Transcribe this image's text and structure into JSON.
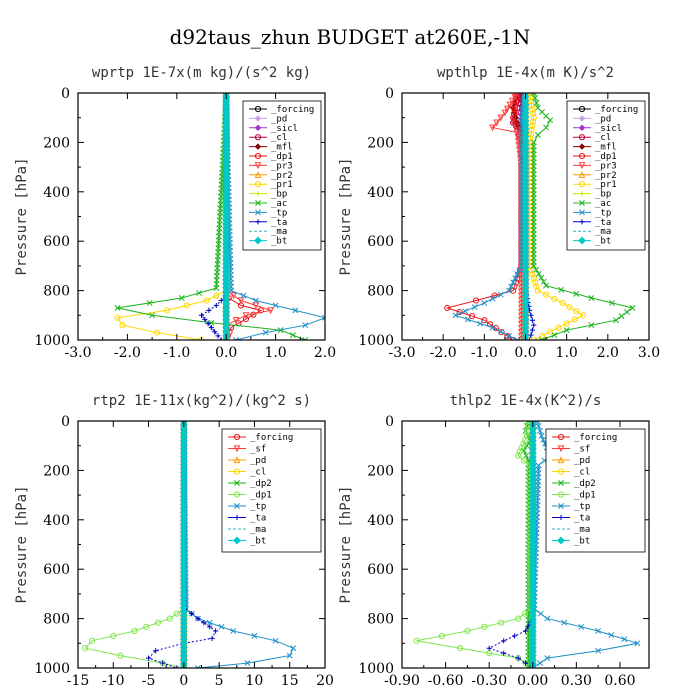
{
  "figure_title": "d92taus_zhun  BUDGET at260E,-1N",
  "chart_data": [
    {
      "type": "line",
      "title": "wprtp  1E-7x(m kg)/(s^2 kg)",
      "ylabel": "Pressure [hPa]",
      "xlim": [
        -3.0,
        2.0
      ],
      "ylim": [
        0,
        1000
      ],
      "y_inverted": true,
      "xticks": [
        "-3.0",
        "-2.0",
        "-1.0",
        "0.0",
        "1.0",
        "2.0"
      ],
      "xtick_values": [
        -3,
        -2,
        -1,
        0,
        1,
        2
      ],
      "yticks": [
        "0",
        "200",
        "400",
        "600",
        "800",
        "1000"
      ],
      "ytick_values": [
        0,
        200,
        400,
        600,
        800,
        1000
      ],
      "legend_position": "top-right",
      "series": [
        {
          "name": "_forcing",
          "color": "#000000",
          "marker": "o",
          "x": [
            0,
            0
          ],
          "y": [
            0,
            1000
          ]
        },
        {
          "name": "_pd",
          "color": "#c8a0e6",
          "marker": "d",
          "x": [
            0,
            0
          ],
          "y": [
            0,
            1000
          ]
        },
        {
          "name": "_sicl",
          "color": "#9b30d0",
          "marker": "d",
          "x": [
            0,
            0
          ],
          "y": [
            0,
            1000
          ]
        },
        {
          "name": "_cl",
          "color": "#b40032",
          "marker": "o",
          "x": [
            0,
            0
          ],
          "y": [
            0,
            1000
          ]
        },
        {
          "name": "_mfl",
          "color": "#8b0000",
          "marker": "d",
          "x": [
            0,
            0
          ],
          "y": [
            0,
            1000
          ]
        },
        {
          "name": "_dp1",
          "color": "#e8191e",
          "marker": "o",
          "x": [
            0,
            0.0,
            0.05,
            0.3,
            0.7,
            0.1,
            0.0
          ],
          "y": [
            0,
            800,
            830,
            860,
            880,
            950,
            1000
          ]
        },
        {
          "name": "_pr3",
          "color": "#ff3c3c",
          "marker": "v",
          "x": [
            0,
            0.0,
            0.3,
            0.9,
            0.4,
            0.0,
            0.0
          ],
          "y": [
            0,
            800,
            840,
            880,
            900,
            940,
            1000
          ]
        },
        {
          "name": "_pr2",
          "color": "#ff9900",
          "marker": "^",
          "x": [
            0,
            0,
            0
          ],
          "y": [
            0,
            900,
            1000
          ]
        },
        {
          "name": "_pr1",
          "color": "#ffd700",
          "marker": "o",
          "x": [
            0,
            0.0,
            -0.4,
            -1.2,
            -2.2,
            -2.1,
            -1.4,
            -0.5
          ],
          "y": [
            0,
            800,
            840,
            880,
            910,
            940,
            970,
            1000
          ]
        },
        {
          "name": "_bp",
          "color": "#cce600",
          "marker": "+",
          "x": [
            0,
            0,
            0
          ],
          "y": [
            0,
            900,
            1000
          ]
        },
        {
          "name": "_ac",
          "color": "#1eb41e",
          "marker": "x",
          "x": [
            0,
            -0.2,
            -0.9,
            -2.2,
            -1.5,
            -0.3,
            1.1,
            1.6
          ],
          "y": [
            0,
            790,
            830,
            870,
            900,
            930,
            960,
            1000
          ]
        },
        {
          "name": "_tp",
          "color": "#1e90c8",
          "marker": "x",
          "x": [
            0,
            0.1,
            0.6,
            1.4,
            2.0,
            1.6,
            0.8,
            0.2
          ],
          "y": [
            0,
            800,
            840,
            880,
            910,
            940,
            970,
            1000
          ]
        },
        {
          "name": "_ta",
          "color": "#0000c8",
          "marker": "+",
          "x": [
            0,
            0.0,
            -0.2,
            -0.5,
            -0.3,
            -0.1
          ],
          "y": [
            0,
            820,
            860,
            900,
            950,
            1000
          ]
        },
        {
          "name": "_ma",
          "color": "#32b4c8",
          "marker": "-",
          "x": [
            0,
            0,
            0
          ],
          "y": [
            0,
            900,
            1000
          ]
        },
        {
          "name": "_bt",
          "color": "#00c8c8",
          "marker": "D",
          "x": [
            0,
            0,
            0
          ],
          "y": [
            0,
            900,
            1000
          ]
        }
      ]
    },
    {
      "type": "line",
      "title": "wpthlp  1E-4x(m K)/s^2",
      "ylabel": "Pressure [hPa]",
      "xlim": [
        -3.0,
        3.0
      ],
      "ylim": [
        0,
        1000
      ],
      "y_inverted": true,
      "xticks": [
        "-3.0",
        "-2.0",
        "-1.0",
        "0.0",
        "1.0",
        "2.0",
        "3.0"
      ],
      "xtick_values": [
        -3,
        -2,
        -1,
        0,
        1,
        2,
        3
      ],
      "yticks": [
        "0",
        "200",
        "400",
        "600",
        "800",
        "1000"
      ],
      "ytick_values": [
        0,
        200,
        400,
        600,
        800,
        1000
      ],
      "legend_position": "top-right",
      "series": [
        {
          "name": "_forcing",
          "color": "#000000",
          "marker": "o",
          "x": [
            0,
            0
          ],
          "y": [
            0,
            1000
          ]
        },
        {
          "name": "_pd",
          "color": "#c8a0e6",
          "marker": "d",
          "x": [
            0,
            0
          ],
          "y": [
            0,
            1000
          ]
        },
        {
          "name": "_sicl",
          "color": "#9b30d0",
          "marker": "d",
          "x": [
            -0.1,
            -0.1,
            0,
            0
          ],
          "y": [
            0,
            140,
            200,
            1000
          ]
        },
        {
          "name": "_cl",
          "color": "#b40032",
          "marker": "o",
          "x": [
            -0.1,
            -0.2,
            -0.3,
            -0.1,
            0,
            0
          ],
          "y": [
            0,
            60,
            120,
            160,
            300,
            1000
          ]
        },
        {
          "name": "_mfl",
          "color": "#8b0000",
          "marker": "d",
          "x": [
            -0.2,
            -0.3,
            -0.2,
            0,
            0
          ],
          "y": [
            0,
            60,
            120,
            200,
            1000
          ]
        },
        {
          "name": "_dp1",
          "color": "#e8191e",
          "marker": "o",
          "x": [
            -0.2,
            -0.3,
            -0.1,
            -0.1,
            -0.3,
            -1.2,
            -1.9,
            -1.0,
            -0.3
          ],
          "y": [
            0,
            100,
            200,
            700,
            800,
            840,
            870,
            920,
            1000
          ]
        },
        {
          "name": "_pr3",
          "color": "#ff3c3c",
          "marker": "v",
          "x": [
            -0.2,
            -0.5,
            -0.8,
            -0.2,
            -0.1,
            -0.1
          ],
          "y": [
            0,
            80,
            140,
            160,
            300,
            1000
          ]
        },
        {
          "name": "_pr2",
          "color": "#ff9900",
          "marker": "^",
          "x": [
            0,
            0,
            0
          ],
          "y": [
            0,
            900,
            1000
          ]
        },
        {
          "name": "_pr1",
          "color": "#ffd700",
          "marker": "o",
          "x": [
            0.1,
            0.2,
            0.1,
            0.1,
            0.3,
            0.9,
            1.4,
            0.8,
            0.2
          ],
          "y": [
            0,
            100,
            200,
            700,
            800,
            850,
            900,
            950,
            1000
          ]
        },
        {
          "name": "_bp",
          "color": "#cce600",
          "marker": "+",
          "x": [
            0,
            0,
            0
          ],
          "y": [
            0,
            900,
            1000
          ]
        },
        {
          "name": "_ac",
          "color": "#1eb41e",
          "marker": "x",
          "x": [
            0.2,
            0.3,
            0.6,
            0.5,
            0.3,
            0.2,
            0.2,
            0.5,
            1.6,
            2.6,
            2.2,
            1.0,
            0.4
          ],
          "y": [
            0,
            60,
            110,
            140,
            170,
            200,
            700,
            780,
            830,
            870,
            920,
            960,
            1000
          ]
        },
        {
          "name": "_tp",
          "color": "#1e90c8",
          "marker": "x",
          "x": [
            0.0,
            -0.1,
            -0.1,
            -0.4,
            -1.0,
            -1.7,
            -0.8,
            -0.2
          ],
          "y": [
            0,
            100,
            700,
            800,
            850,
            900,
            950,
            1000
          ]
        },
        {
          "name": "_ta",
          "color": "#0000c8",
          "marker": "+",
          "x": [
            0,
            0.0,
            0.1,
            0.2,
            0.1
          ],
          "y": [
            0,
            800,
            880,
            940,
            1000
          ]
        },
        {
          "name": "_ma",
          "color": "#32b4c8",
          "marker": "-",
          "x": [
            0,
            0,
            0
          ],
          "y": [
            0,
            900,
            1000
          ]
        },
        {
          "name": "_bt",
          "color": "#00c8c8",
          "marker": "D",
          "x": [
            0,
            0,
            0
          ],
          "y": [
            0,
            900,
            1000
          ]
        }
      ]
    },
    {
      "type": "line",
      "title": "rtp2  1E-11x(kg^2)/(kg^2 s)",
      "ylabel": "Pressure [hPa]",
      "xlim": [
        -15,
        20
      ],
      "ylim": [
        0,
        1000
      ],
      "y_inverted": true,
      "xticks": [
        "-15",
        "-10",
        "-5",
        "0",
        "5",
        "10",
        "15",
        "20"
      ],
      "xtick_values": [
        -15,
        -10,
        -5,
        0,
        5,
        10,
        15,
        20
      ],
      "yticks": [
        "0",
        "200",
        "400",
        "600",
        "800",
        "1000"
      ],
      "ytick_values": [
        0,
        200,
        400,
        600,
        800,
        1000
      ],
      "legend_position": "top-right",
      "series": [
        {
          "name": "_forcing",
          "color": "#e8191e",
          "marker": "o",
          "x": [
            0,
            0
          ],
          "y": [
            0,
            1000
          ]
        },
        {
          "name": "_sf",
          "color": "#ff3c3c",
          "marker": "v",
          "x": [
            0,
            0
          ],
          "y": [
            0,
            1000
          ]
        },
        {
          "name": "_pd",
          "color": "#ff9900",
          "marker": "^",
          "x": [
            0,
            0
          ],
          "y": [
            0,
            1000
          ]
        },
        {
          "name": "_cl",
          "color": "#ffd700",
          "marker": "o",
          "x": [
            0,
            0
          ],
          "y": [
            0,
            1000
          ]
        },
        {
          "name": "_dp2",
          "color": "#1eb41e",
          "marker": "x",
          "x": [
            0,
            0
          ],
          "y": [
            0,
            1000
          ]
        },
        {
          "name": "_dp1",
          "color": "#7fe64a",
          "marker": "o",
          "x": [
            0,
            0.0,
            -2,
            -7,
            -13,
            -14,
            -9,
            -3,
            0
          ],
          "y": [
            0,
            760,
            800,
            850,
            890,
            920,
            950,
            980,
            1000
          ]
        },
        {
          "name": "_tp",
          "color": "#1e90c8",
          "marker": "x",
          "x": [
            0,
            0.3,
            2,
            7,
            13,
            15.5,
            15,
            9,
            2
          ],
          "y": [
            0,
            760,
            800,
            850,
            890,
            920,
            950,
            980,
            1000
          ]
        },
        {
          "name": "_ta",
          "color": "#0000c8",
          "marker": "+",
          "x": [
            0,
            0.2,
            2,
            4.5,
            4,
            0,
            -4,
            -5,
            -1
          ],
          "y": [
            0,
            760,
            800,
            850,
            880,
            900,
            930,
            960,
            1000
          ]
        },
        {
          "name": "_ma",
          "color": "#32b4c8",
          "marker": "-",
          "x": [
            0,
            0,
            0
          ],
          "y": [
            0,
            900,
            1000
          ]
        },
        {
          "name": "_bt",
          "color": "#00c8c8",
          "marker": "D",
          "x": [
            0,
            0,
            0
          ],
          "y": [
            0,
            900,
            1000
          ]
        }
      ]
    },
    {
      "type": "line",
      "title": "thlp2  1E-4x(K^2)/s",
      "ylabel": "Pressure [hPa]",
      "xlim": [
        -0.9,
        0.8
      ],
      "ylim": [
        0,
        1000
      ],
      "y_inverted": true,
      "xticks": [
        "-0.90",
        "-0.60",
        "-0.30",
        "0.00",
        "0.30",
        "0.60"
      ],
      "xtick_values": [
        -0.9,
        -0.6,
        -0.3,
        0.0,
        0.3,
        0.6
      ],
      "yticks": [
        "0",
        "200",
        "400",
        "600",
        "800",
        "1000"
      ],
      "ytick_values": [
        0,
        200,
        400,
        600,
        800,
        1000
      ],
      "legend_position": "top-right",
      "series": [
        {
          "name": "_forcing",
          "color": "#e8191e",
          "marker": "o",
          "x": [
            0,
            0
          ],
          "y": [
            0,
            1000
          ]
        },
        {
          "name": "_sf",
          "color": "#ff3c3c",
          "marker": "v",
          "x": [
            0,
            0
          ],
          "y": [
            0,
            1000
          ]
        },
        {
          "name": "_pd",
          "color": "#ff9900",
          "marker": "^",
          "x": [
            0,
            0
          ],
          "y": [
            0,
            1000
          ]
        },
        {
          "name": "_cl",
          "color": "#ffd700",
          "marker": "o",
          "x": [
            0,
            0
          ],
          "y": [
            0,
            1000
          ]
        },
        {
          "name": "_dp2",
          "color": "#1eb41e",
          "marker": "x",
          "x": [
            -0.03,
            -0.05,
            -0.02,
            -0.06,
            -0.03,
            -0.03
          ],
          "y": [
            0,
            40,
            80,
            120,
            160,
            1000
          ]
        },
        {
          "name": "_dp1",
          "color": "#7fe64a",
          "marker": "o",
          "x": [
            -0.02,
            -0.04,
            -0.1,
            -0.02,
            -0.01,
            -0.1,
            -0.45,
            -0.8,
            -0.5,
            -0.1,
            0
          ],
          "y": [
            0,
            60,
            140,
            180,
            760,
            800,
            850,
            890,
            920,
            960,
            1000
          ]
        },
        {
          "name": "_tp",
          "color": "#1e90c8",
          "marker": "x",
          "x": [
            0.03,
            0.06,
            0.12,
            0.04,
            0.01,
            0.1,
            0.45,
            0.72,
            0.45,
            0.1,
            0
          ],
          "y": [
            0,
            60,
            140,
            180,
            760,
            800,
            850,
            900,
            930,
            960,
            1000
          ]
        },
        {
          "name": "_ta",
          "color": "#0000c8",
          "marker": "+",
          "x": [
            0,
            0,
            -0.05,
            -0.2,
            -0.3,
            -0.1,
            0
          ],
          "y": [
            0,
            800,
            850,
            890,
            920,
            960,
            1000
          ]
        },
        {
          "name": "_ma",
          "color": "#32b4c8",
          "marker": "-",
          "x": [
            0,
            0,
            0
          ],
          "y": [
            0,
            900,
            1000
          ]
        },
        {
          "name": "_bt",
          "color": "#00c8c8",
          "marker": "D",
          "x": [
            0,
            0,
            0
          ],
          "y": [
            0,
            900,
            1000
          ]
        }
      ]
    }
  ]
}
